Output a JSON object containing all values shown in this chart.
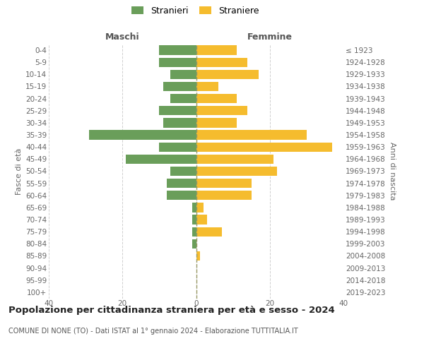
{
  "age_groups": [
    "0-4",
    "5-9",
    "10-14",
    "15-19",
    "20-24",
    "25-29",
    "30-34",
    "35-39",
    "40-44",
    "45-49",
    "50-54",
    "55-59",
    "60-64",
    "65-69",
    "70-74",
    "75-79",
    "80-84",
    "85-89",
    "90-94",
    "95-99",
    "100+"
  ],
  "birth_years": [
    "2019-2023",
    "2014-2018",
    "2009-2013",
    "2004-2008",
    "1999-2003",
    "1994-1998",
    "1989-1993",
    "1984-1988",
    "1979-1983",
    "1974-1978",
    "1969-1973",
    "1964-1968",
    "1959-1963",
    "1954-1958",
    "1949-1953",
    "1944-1948",
    "1939-1943",
    "1934-1938",
    "1929-1933",
    "1924-1928",
    "≤ 1923"
  ],
  "maschi": [
    10,
    10,
    7,
    9,
    7,
    10,
    9,
    29,
    10,
    19,
    7,
    8,
    8,
    1,
    1,
    1,
    1,
    0,
    0,
    0,
    0
  ],
  "femmine": [
    11,
    14,
    17,
    6,
    11,
    14,
    11,
    30,
    37,
    21,
    22,
    15,
    15,
    2,
    3,
    7,
    0,
    1,
    0,
    0,
    0
  ],
  "color_maschi": "#6a9e5a",
  "color_femmine": "#f5bc2e",
  "title": "Popolazione per cittadinanza straniera per età e sesso - 2024",
  "subtitle": "COMUNE DI NONE (TO) - Dati ISTAT al 1° gennaio 2024 - Elaborazione TUTTITALIA.IT",
  "label_maschi": "Stranieri",
  "label_femmine": "Straniere",
  "header_left": "Maschi",
  "header_right": "Femmine",
  "ylabel_left": "Fasce di età",
  "ylabel_right": "Anni di nascita",
  "xlim": 40,
  "bg_color": "#ffffff",
  "grid_color": "#d0d0d0",
  "bar_height": 0.78,
  "title_fontsize": 9.5,
  "subtitle_fontsize": 7,
  "tick_fontsize": 7.5,
  "header_fontsize": 9,
  "legend_fontsize": 9,
  "ylabel_fontsize": 8
}
